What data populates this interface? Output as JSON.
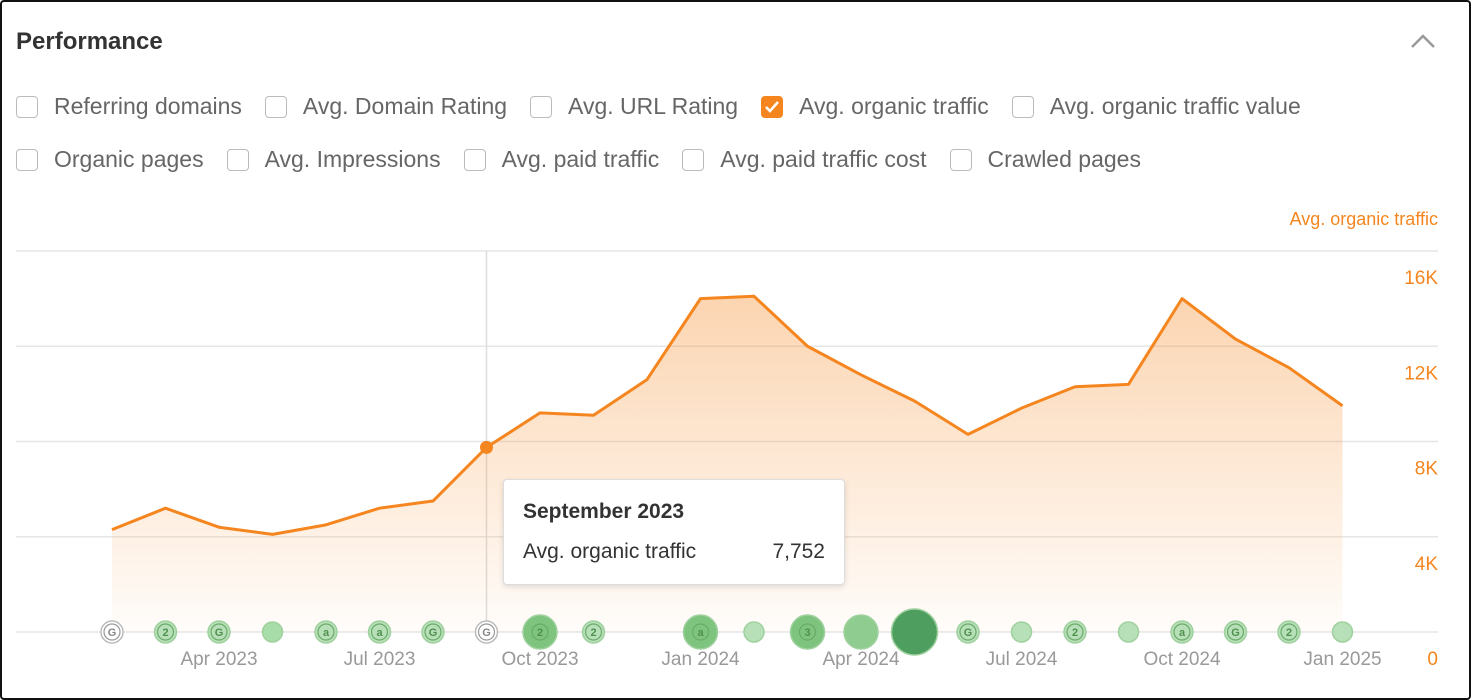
{
  "header": {
    "title": "Performance"
  },
  "filters": {
    "rows": [
      [
        {
          "label": "Referring domains",
          "checked": false
        },
        {
          "label": "Avg. Domain Rating",
          "checked": false
        },
        {
          "label": "Avg. URL Rating",
          "checked": false
        },
        {
          "label": "Avg. organic traffic",
          "checked": true
        },
        {
          "label": "Avg. organic traffic value",
          "checked": false
        }
      ],
      [
        {
          "label": "Organic pages",
          "checked": false
        },
        {
          "label": "Avg. Impressions",
          "checked": false
        },
        {
          "label": "Avg. paid traffic",
          "checked": false
        },
        {
          "label": "Avg. paid traffic cost",
          "checked": false
        },
        {
          "label": "Crawled pages",
          "checked": false
        }
      ]
    ]
  },
  "chart_data": {
    "type": "area",
    "categories": [
      null,
      null,
      "Apr 2023",
      null,
      null,
      "Jul 2023",
      null,
      null,
      "Oct 2023",
      null,
      null,
      "Jan 2024",
      null,
      null,
      "Apr 2024",
      null,
      null,
      "Jul 2024",
      null,
      null,
      "Oct 2024",
      null,
      null,
      "Jan 2025"
    ],
    "series": [
      {
        "name": "Avg. organic traffic",
        "color": "#f5861f",
        "values": [
          4300,
          5200,
          4400,
          4100,
          4500,
          5200,
          5500,
          7752,
          9200,
          9100,
          10600,
          14000,
          14100,
          12000,
          10800,
          9700,
          8300,
          9400,
          10300,
          10400,
          14000,
          12300,
          11100,
          9500
        ]
      }
    ],
    "ylim": [
      0,
      16000
    ],
    "yticks": [
      0,
      {
        "value": 4000,
        "label": "4K"
      },
      {
        "value": 8000,
        "label": "8K"
      },
      {
        "value": 12000,
        "label": "12K"
      },
      {
        "value": 16000,
        "label": "16K"
      }
    ],
    "grid": true,
    "event_labels": [
      "G",
      "2",
      "G",
      null,
      "a",
      "a",
      "G",
      "G",
      "2",
      "2",
      null,
      "a",
      null,
      "3",
      null,
      null,
      "G",
      null,
      "2",
      null,
      "a",
      "G",
      "2",
      null
    ],
    "tooltip": {
      "title": "September 2023",
      "value": 7752,
      "label": "7,752"
    }
  }
}
